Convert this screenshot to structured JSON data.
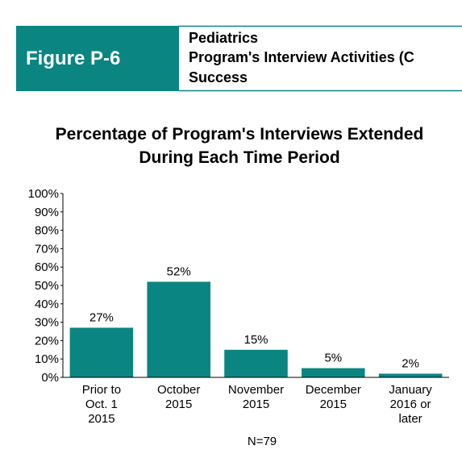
{
  "header": {
    "figure": "Figure P-6",
    "lines": [
      "Pediatrics",
      "Program's Interview Activities (C",
      "Success"
    ]
  },
  "chart_data": {
    "type": "bar",
    "title": "Percentage of Program's Interviews Extended\nDuring Each Time Period",
    "categories": [
      "Prior to\nOct. 1\n2015",
      "October\n2015",
      "November\n2015",
      "December\n2015",
      "January\n2016 or\nlater"
    ],
    "values": [
      27,
      52,
      15,
      5,
      2
    ],
    "value_labels": [
      "27%",
      "52%",
      "15%",
      "5%",
      "2%"
    ],
    "color": "#0a8582",
    "ylim": [
      0,
      100
    ],
    "yticks": [
      {
        "value": 0,
        "label": "0%"
      },
      {
        "value": 10,
        "label": "10%"
      },
      {
        "value": 20,
        "label": "20%"
      },
      {
        "value": 30,
        "label": "30%"
      },
      {
        "value": 40,
        "label": "40%"
      },
      {
        "value": 50,
        "label": "50%"
      },
      {
        "value": 60,
        "label": "60%"
      },
      {
        "value": 70,
        "label": "70%"
      },
      {
        "value": 80,
        "label": "80%"
      },
      {
        "value": 90,
        "label": "90%"
      },
      {
        "value": 100,
        "label": "100%"
      }
    ],
    "note": "N=79"
  }
}
